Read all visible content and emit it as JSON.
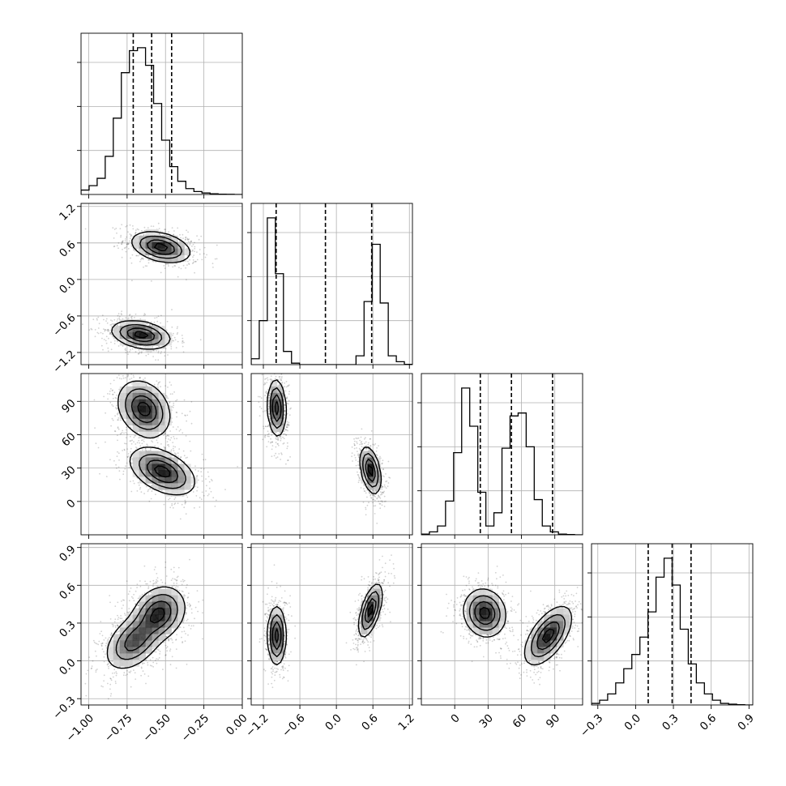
{
  "chart_data": {
    "type": "corner",
    "grid": true,
    "parameters": [
      {
        "range": [
          -1.05,
          0.0
        ],
        "ticks": [
          -1.0,
          -0.75,
          -0.5,
          -0.25,
          0.0
        ],
        "tick_labels": [
          "−1.00",
          "−0.75",
          "−0.50",
          "−0.25",
          "0.00"
        ],
        "quantiles": [
          -0.71,
          -0.59,
          -0.46
        ]
      },
      {
        "range": [
          -1.4,
          1.25
        ],
        "ticks": [
          -1.2,
          -0.6,
          0.0,
          0.6,
          1.2
        ],
        "tick_labels": [
          "−1.2",
          "−0.6",
          "0.0",
          "0.6",
          "1.2"
        ],
        "quantiles": [
          -0.99,
          -0.18,
          0.58
        ]
      },
      {
        "range": [
          -30,
          115
        ],
        "ticks": [
          0,
          30,
          60,
          90
        ],
        "tick_labels": [
          "0",
          "30",
          "60",
          "90"
        ],
        "quantiles": [
          23,
          51,
          88
        ]
      },
      {
        "range": [
          -0.35,
          0.93
        ],
        "ticks": [
          -0.3,
          0.0,
          0.3,
          0.6,
          0.9
        ],
        "tick_labels": [
          "−0.3",
          "0.0",
          "0.3",
          "0.6",
          "0.9"
        ],
        "quantiles": [
          0.1,
          0.29,
          0.44
        ]
      }
    ],
    "histograms": [
      {
        "param": 0,
        "edges_start": -1.05,
        "bin_width": 0.0525,
        "counts": [
          30,
          60,
          110,
          260,
          520,
          830,
          980,
          1000,
          880,
          620,
          370,
          190,
          90,
          40,
          20,
          10,
          5,
          2,
          1,
          0
        ]
      },
      {
        "param": 1,
        "edges_start": -1.4,
        "bin_width": 0.1325,
        "counts": [
          40,
          300,
          1000,
          620,
          90,
          10,
          0,
          0,
          0,
          0,
          0,
          0,
          0,
          60,
          430,
          820,
          420,
          60,
          20,
          2
        ]
      },
      {
        "param": 2,
        "edges_start": -30,
        "bin_width": 7.25,
        "counts": [
          5,
          20,
          60,
          230,
          560,
          1000,
          740,
          290,
          60,
          150,
          590,
          810,
          830,
          600,
          240,
          60,
          20,
          5,
          2,
          0
        ]
      },
      {
        "param": 3,
        "edges_start": -0.35,
        "bin_width": 0.064,
        "counts": [
          10,
          30,
          70,
          140,
          230,
          320,
          430,
          590,
          810,
          930,
          760,
          480,
          260,
          140,
          70,
          30,
          10,
          5,
          2,
          0
        ]
      }
    ],
    "joint": [
      {
        "x": 0,
        "y": 1,
        "modes": [
          {
            "cx": -0.53,
            "cy": 0.53,
            "sx": 0.09,
            "sy": 0.12,
            "rho": -0.35,
            "w": 1.0
          },
          {
            "cx": -0.66,
            "cy": -0.91,
            "sx": 0.09,
            "sy": 0.11,
            "rho": -0.3,
            "w": 1.0
          }
        ]
      },
      {
        "x": 0,
        "y": 2,
        "modes": [
          {
            "cx": -0.64,
            "cy": 83,
            "sx": 0.08,
            "sy": 12,
            "rho": -0.25,
            "w": 1.0
          },
          {
            "cx": -0.52,
            "cy": 27,
            "sx": 0.1,
            "sy": 10,
            "rho": -0.45,
            "w": 1.0
          }
        ]
      },
      {
        "x": 0,
        "y": 3,
        "modes": [
          {
            "cx": -0.54,
            "cy": 0.38,
            "sx": 0.08,
            "sy": 0.1,
            "rho": 0.2,
            "w": 1.0
          },
          {
            "cx": -0.7,
            "cy": 0.16,
            "sx": 0.09,
            "sy": 0.11,
            "rho": 0.45,
            "w": 0.85
          }
        ]
      },
      {
        "x": 1,
        "y": 2,
        "modes": [
          {
            "cx": -0.98,
            "cy": 84,
            "sx": 0.07,
            "sy": 12,
            "rho": -0.1,
            "w": 1.0
          },
          {
            "cx": 0.56,
            "cy": 28,
            "sx": 0.08,
            "sy": 10,
            "rho": -0.4,
            "w": 1.0
          }
        ]
      },
      {
        "x": 1,
        "y": 3,
        "modes": [
          {
            "cx": -0.98,
            "cy": 0.2,
            "sx": 0.07,
            "sy": 0.11,
            "rho": 0.0,
            "w": 1.0
          },
          {
            "cx": 0.56,
            "cy": 0.4,
            "sx": 0.09,
            "sy": 0.1,
            "rho": 0.6,
            "w": 1.0
          }
        ]
      },
      {
        "x": 2,
        "y": 3,
        "modes": [
          {
            "cx": 27,
            "cy": 0.38,
            "sx": 9,
            "sy": 0.09,
            "rho": -0.1,
            "w": 1.0
          },
          {
            "cx": 84,
            "cy": 0.2,
            "sx": 10,
            "sy": 0.11,
            "rho": 0.6,
            "w": 1.0
          }
        ]
      }
    ]
  }
}
